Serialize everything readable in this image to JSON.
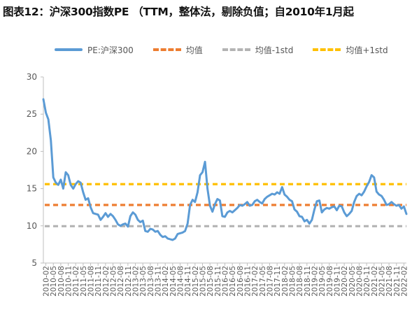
{
  "title": "图表12：沪深300指数PE （TTM，整体法，剔除负值；自2010年1月起",
  "chart_data": {
    "type": "line",
    "y_axis": {
      "min": 5,
      "max": 30,
      "ticks": [
        5,
        10,
        15,
        20,
        25,
        30
      ]
    },
    "grid": false,
    "legend_position": "top",
    "x_ticks": [
      "2010-02",
      "2010-05",
      "2010-08",
      "2010-11",
      "2011-02",
      "2011-05",
      "2011-08",
      "2011-11",
      "2012-02",
      "2012-05",
      "2012-08",
      "2012-11",
      "2013-02",
      "2013-05",
      "2013-08",
      "2013-11",
      "2014-02",
      "2014-05",
      "2014-08",
      "2014-11",
      "2015-02",
      "2015-05",
      "2015-08",
      "2015-11",
      "2016-02",
      "2016-05",
      "2016-08",
      "2016-11",
      "2017-02",
      "2017-05",
      "2017-08",
      "2017-11",
      "2018-02",
      "2018-05",
      "2018-08",
      "2018-11",
      "2019-02",
      "2019-05",
      "2019-08",
      "2019-11",
      "2020-02",
      "2020-05",
      "2020-08",
      "2020-11",
      "2021-02",
      "2021-05",
      "2021-08",
      "2021-11",
      "2022-02"
    ],
    "series": [
      {
        "name": "PE:沪深300",
        "style": "solid",
        "color": "#5b9bd5",
        "points": [
          [
            "2010-01",
            27.0
          ],
          [
            "2010-02",
            25.2
          ],
          [
            "2010-03",
            24.3
          ],
          [
            "2010-04",
            21.5
          ],
          [
            "2010-05",
            16.5
          ],
          [
            "2010-06",
            15.8
          ],
          [
            "2010-07",
            15.5
          ],
          [
            "2010-08",
            16.2
          ],
          [
            "2010-09",
            15.0
          ],
          [
            "2010-10",
            17.2
          ],
          [
            "2010-11",
            16.8
          ],
          [
            "2010-12",
            15.5
          ],
          [
            "2011-01",
            15.0
          ],
          [
            "2011-02",
            15.6
          ],
          [
            "2011-03",
            16.0
          ],
          [
            "2011-04",
            15.8
          ],
          [
            "2011-05",
            14.5
          ],
          [
            "2011-06",
            13.5
          ],
          [
            "2011-07",
            13.7
          ],
          [
            "2011-08",
            12.5
          ],
          [
            "2011-09",
            11.7
          ],
          [
            "2011-10",
            11.6
          ],
          [
            "2011-11",
            11.5
          ],
          [
            "2011-12",
            10.8
          ],
          [
            "2012-01",
            11.2
          ],
          [
            "2012-02",
            11.7
          ],
          [
            "2012-03",
            11.2
          ],
          [
            "2012-04",
            11.6
          ],
          [
            "2012-05",
            11.3
          ],
          [
            "2012-06",
            10.8
          ],
          [
            "2012-07",
            10.2
          ],
          [
            "2012-08",
            10.0
          ],
          [
            "2012-09",
            10.2
          ],
          [
            "2012-10",
            10.3
          ],
          [
            "2012-11",
            9.9
          ],
          [
            "2012-12",
            11.3
          ],
          [
            "2013-01",
            11.8
          ],
          [
            "2013-02",
            11.5
          ],
          [
            "2013-03",
            10.8
          ],
          [
            "2013-04",
            10.5
          ],
          [
            "2013-05",
            10.7
          ],
          [
            "2013-06",
            9.3
          ],
          [
            "2013-07",
            9.2
          ],
          [
            "2013-08",
            9.6
          ],
          [
            "2013-09",
            9.5
          ],
          [
            "2013-10",
            9.2
          ],
          [
            "2013-11",
            9.3
          ],
          [
            "2013-12",
            8.8
          ],
          [
            "2014-01",
            8.5
          ],
          [
            "2014-02",
            8.6
          ],
          [
            "2014-03",
            8.3
          ],
          [
            "2014-04",
            8.2
          ],
          [
            "2014-05",
            8.1
          ],
          [
            "2014-06",
            8.3
          ],
          [
            "2014-07",
            8.9
          ],
          [
            "2014-08",
            9.0
          ],
          [
            "2014-09",
            9.1
          ],
          [
            "2014-10",
            9.3
          ],
          [
            "2014-11",
            10.3
          ],
          [
            "2014-12",
            12.8
          ],
          [
            "2015-01",
            13.5
          ],
          [
            "2015-02",
            13.2
          ],
          [
            "2015-03",
            14.5
          ],
          [
            "2015-04",
            16.8
          ],
          [
            "2015-05",
            17.2
          ],
          [
            "2015-06",
            18.6
          ],
          [
            "2015-07",
            15.0
          ],
          [
            "2015-08",
            12.7
          ],
          [
            "2015-09",
            11.9
          ],
          [
            "2015-10",
            12.9
          ],
          [
            "2015-11",
            13.6
          ],
          [
            "2015-12",
            13.4
          ],
          [
            "2016-01",
            11.3
          ],
          [
            "2016-02",
            11.2
          ],
          [
            "2016-03",
            11.8
          ],
          [
            "2016-04",
            12.0
          ],
          [
            "2016-05",
            11.8
          ],
          [
            "2016-06",
            12.1
          ],
          [
            "2016-07",
            12.4
          ],
          [
            "2016-08",
            12.8
          ],
          [
            "2016-09",
            12.7
          ],
          [
            "2016-10",
            12.9
          ],
          [
            "2016-11",
            13.2
          ],
          [
            "2016-12",
            12.7
          ],
          [
            "2017-01",
            12.8
          ],
          [
            "2017-02",
            13.3
          ],
          [
            "2017-03",
            13.5
          ],
          [
            "2017-04",
            13.2
          ],
          [
            "2017-05",
            13.0
          ],
          [
            "2017-06",
            13.6
          ],
          [
            "2017-07",
            13.9
          ],
          [
            "2017-08",
            14.1
          ],
          [
            "2017-09",
            14.3
          ],
          [
            "2017-10",
            14.2
          ],
          [
            "2017-11",
            14.5
          ],
          [
            "2017-12",
            14.3
          ],
          [
            "2018-01",
            15.2
          ],
          [
            "2018-02",
            14.2
          ],
          [
            "2018-03",
            13.9
          ],
          [
            "2018-04",
            13.5
          ],
          [
            "2018-05",
            13.3
          ],
          [
            "2018-06",
            12.2
          ],
          [
            "2018-07",
            11.9
          ],
          [
            "2018-08",
            11.3
          ],
          [
            "2018-09",
            11.2
          ],
          [
            "2018-10",
            10.6
          ],
          [
            "2018-11",
            10.8
          ],
          [
            "2018-12",
            10.3
          ],
          [
            "2019-01",
            10.8
          ],
          [
            "2019-02",
            12.2
          ],
          [
            "2019-03",
            13.3
          ],
          [
            "2019-04",
            13.4
          ],
          [
            "2019-05",
            11.8
          ],
          [
            "2019-06",
            12.2
          ],
          [
            "2019-07",
            12.4
          ],
          [
            "2019-08",
            12.3
          ],
          [
            "2019-09",
            12.5
          ],
          [
            "2019-10",
            12.6
          ],
          [
            "2019-11",
            12.1
          ],
          [
            "2019-12",
            12.7
          ],
          [
            "2020-01",
            12.6
          ],
          [
            "2020-02",
            11.8
          ],
          [
            "2020-03",
            11.3
          ],
          [
            "2020-04",
            11.6
          ],
          [
            "2020-05",
            12.0
          ],
          [
            "2020-06",
            13.2
          ],
          [
            "2020-07",
            14.0
          ],
          [
            "2020-08",
            14.3
          ],
          [
            "2020-09",
            14.1
          ],
          [
            "2020-10",
            14.6
          ],
          [
            "2020-11",
            15.3
          ],
          [
            "2020-12",
            15.9
          ],
          [
            "2021-01",
            16.8
          ],
          [
            "2021-02",
            16.5
          ],
          [
            "2021-03",
            14.6
          ],
          [
            "2021-04",
            14.2
          ],
          [
            "2021-05",
            14.0
          ],
          [
            "2021-06",
            13.5
          ],
          [
            "2021-07",
            12.8
          ],
          [
            "2021-08",
            12.9
          ],
          [
            "2021-09",
            13.2
          ],
          [
            "2021-10",
            12.9
          ],
          [
            "2021-11",
            12.7
          ],
          [
            "2021-12",
            12.8
          ],
          [
            "2022-01",
            12.3
          ],
          [
            "2022-02",
            12.6
          ],
          [
            "2022-03",
            11.6
          ]
        ]
      },
      {
        "name": "均值",
        "style": "dashed",
        "color": "#ed7d31",
        "value": 12.8
      },
      {
        "name": "均值-1std",
        "style": "dashed",
        "color": "#b4b4b4",
        "value": 9.95
      },
      {
        "name": "均值+1std",
        "style": "dashed",
        "color": "#ffc000",
        "value": 15.6
      }
    ]
  }
}
